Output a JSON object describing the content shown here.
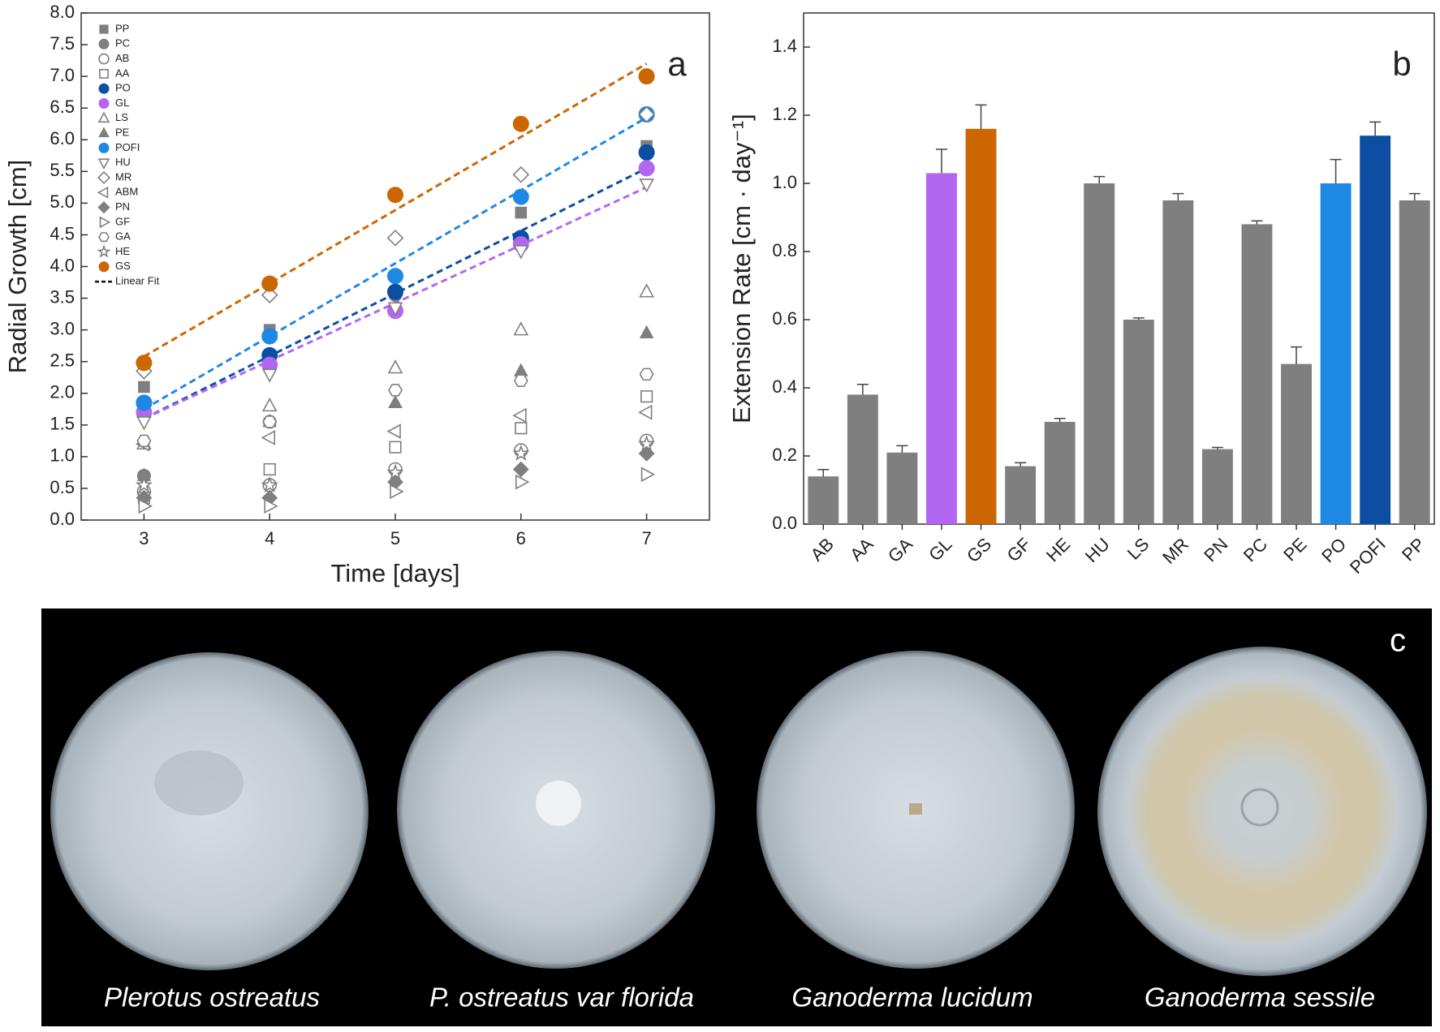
{
  "chart_data": [
    {
      "type": "scatter",
      "panel_label": "a",
      "xlabel": "Time [days]",
      "ylabel": "Radial Growth [cm]",
      "x": [
        3,
        4,
        5,
        6,
        7
      ],
      "xlim": [
        2.5,
        7.5
      ],
      "xticks": [
        3,
        4,
        5,
        6,
        7
      ],
      "ylim": [
        0,
        8
      ],
      "yticks": [
        {
          "value": 0,
          "label": "0.0"
        },
        0.5,
        {
          "value": 1,
          "label": "1.0"
        },
        1.5,
        {
          "value": 2,
          "label": "2.0"
        },
        2.5,
        {
          "value": 3,
          "label": "3.0"
        },
        3.5,
        {
          "value": 4,
          "label": "4.0"
        },
        4.5,
        {
          "value": 5,
          "label": "5.0"
        },
        5.5,
        {
          "value": 6,
          "label": "6.0"
        },
        6.5,
        {
          "value": 7,
          "label": "7.0"
        },
        7.5,
        {
          "value": 8,
          "label": "8.0"
        }
      ],
      "series": [
        {
          "name": "PP",
          "color": "#7f7f7f",
          "marker": "square",
          "filled": true,
          "values": [
            2.1,
            3.0,
            3.6,
            4.85,
            5.9
          ]
        },
        {
          "name": "PC",
          "color": "#7f7f7f",
          "marker": "circle",
          "filled": true,
          "values": [
            0.7,
            1.55,
            3.55,
            4.4,
            5.8
          ]
        },
        {
          "name": "AB",
          "color": "#7f7f7f",
          "marker": "circle",
          "filled": false,
          "values": [
            0.45,
            0.55,
            0.8,
            1.1,
            1.25
          ]
        },
        {
          "name": "AA",
          "color": "#7f7f7f",
          "marker": "square",
          "filled": false,
          "values": [
            0.35,
            0.8,
            1.15,
            1.45,
            1.95
          ]
        },
        {
          "name": "PO",
          "color": "#0b4ea2",
          "marker": "circle",
          "filled": true,
          "values": [
            1.85,
            2.6,
            3.6,
            4.45,
            5.8
          ]
        },
        {
          "name": "GL",
          "color": "#b366f2",
          "marker": "circle",
          "filled": true,
          "values": [
            1.7,
            2.45,
            3.3,
            4.35,
            5.55
          ]
        },
        {
          "name": "LS",
          "color": "#7f7f7f",
          "marker": "triangle-up",
          "filled": false,
          "values": [
            1.2,
            1.8,
            2.4,
            3.0,
            3.6
          ]
        },
        {
          "name": "PE",
          "color": "#7f7f7f",
          "marker": "triangle-up",
          "filled": true,
          "values": [
            0.7,
            1.55,
            1.85,
            2.35,
            2.95
          ]
        },
        {
          "name": "POFI",
          "color": "#1e88e5",
          "marker": "circle",
          "filled": true,
          "values": [
            1.85,
            2.9,
            3.85,
            5.1,
            6.4
          ]
        },
        {
          "name": "HU",
          "color": "#7f7f7f",
          "marker": "triangle-down",
          "filled": false,
          "values": [
            1.55,
            2.3,
            3.35,
            4.25,
            5.3
          ]
        },
        {
          "name": "MR",
          "color": "#7f7f7f",
          "marker": "diamond",
          "filled": false,
          "values": [
            2.35,
            3.55,
            4.45,
            5.45,
            6.4
          ]
        },
        {
          "name": "ABM",
          "color": "#7f7f7f",
          "marker": "triangle-left",
          "filled": false,
          "values": [
            1.2,
            1.3,
            1.4,
            1.65,
            1.7
          ]
        },
        {
          "name": "PN",
          "color": "#7f7f7f",
          "marker": "diamond",
          "filled": true,
          "values": [
            0.35,
            0.35,
            0.6,
            0.8,
            1.05
          ]
        },
        {
          "name": "GF",
          "color": "#7f7f7f",
          "marker": "triangle-right",
          "filled": false,
          "values": [
            0.22,
            0.22,
            0.45,
            0.6,
            0.72
          ]
        },
        {
          "name": "GA",
          "color": "#7f7f7f",
          "marker": "hexagon",
          "filled": false,
          "values": [
            1.25,
            1.55,
            2.05,
            2.2,
            2.3
          ]
        },
        {
          "name": "HE",
          "color": "#7f7f7f",
          "marker": "star",
          "filled": false,
          "values": [
            0.55,
            0.55,
            0.75,
            1.05,
            1.2
          ]
        },
        {
          "name": "GS",
          "color": "#cc6600",
          "marker": "circle",
          "filled": true,
          "values": [
            2.48,
            3.73,
            5.13,
            6.25,
            7.0
          ]
        }
      ],
      "fit_label": "Linear Fit",
      "fits": [
        {
          "color": "#cc6600",
          "x": [
            3,
            7
          ],
          "values": [
            2.58,
            7.2
          ]
        },
        {
          "color": "#1e88e5",
          "x": [
            3,
            7
          ],
          "values": [
            1.75,
            6.35
          ]
        },
        {
          "color": "#0b4ea2",
          "x": [
            3,
            7
          ],
          "values": [
            1.6,
            5.55
          ]
        },
        {
          "color": "#b366f2",
          "x": [
            3,
            7
          ],
          "values": [
            1.6,
            5.25
          ]
        }
      ]
    },
    {
      "type": "bar",
      "panel_label": "b",
      "ylabel": "Extension Rate [cm · day⁻¹]",
      "categories": [
        "AB",
        "AA",
        "GA",
        "GL",
        "GS",
        "GF",
        "HE",
        "HU",
        "LS",
        "MR",
        "PN",
        "PC",
        "PE",
        "PO",
        "POFI",
        "PP"
      ],
      "values": [
        0.14,
        0.38,
        0.21,
        1.03,
        1.16,
        0.17,
        0.3,
        1.0,
        0.6,
        0.95,
        0.22,
        0.88,
        0.47,
        1.0,
        1.14,
        0.95
      ],
      "errors": [
        0.02,
        0.03,
        0.02,
        0.07,
        0.07,
        0.01,
        0.01,
        0.02,
        0.005,
        0.02,
        0.005,
        0.01,
        0.05,
        0.07,
        0.04,
        0.02
      ],
      "colors": [
        "#7f7f7f",
        "#7f7f7f",
        "#7f7f7f",
        "#b366f2",
        "#cc6600",
        "#7f7f7f",
        "#7f7f7f",
        "#7f7f7f",
        "#7f7f7f",
        "#7f7f7f",
        "#7f7f7f",
        "#7f7f7f",
        "#7f7f7f",
        "#1e88e5",
        "#0b4ea2",
        "#7f7f7f"
      ],
      "ylim": [
        0,
        1.5
      ],
      "yticks": [
        {
          "value": 0,
          "label": "0.0"
        },
        0.2,
        0.4,
        0.6,
        0.8,
        {
          "value": 1,
          "label": "1.0"
        },
        1.2,
        1.4
      ]
    }
  ],
  "panel_c": {
    "label": "c",
    "captions": [
      "Plerotus ostreatus",
      "P. ostreatus var florida",
      "Ganoderma lucidum",
      "Ganoderma sessile"
    ]
  }
}
